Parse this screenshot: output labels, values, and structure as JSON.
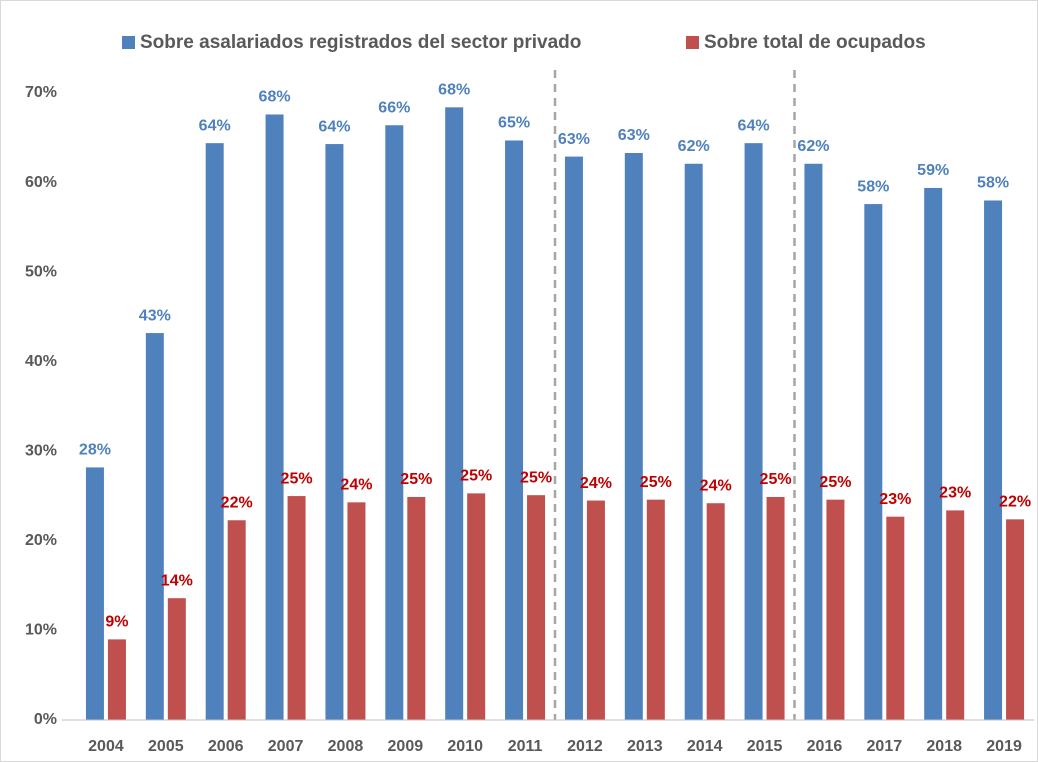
{
  "chart_data": {
    "type": "bar",
    "legend": "top",
    "categories": [
      "2004",
      "2005",
      "2006",
      "2007",
      "2008",
      "2009",
      "2010",
      "2011",
      "2012",
      "2013",
      "2014",
      "2015",
      "2016",
      "2017",
      "2018",
      "2019"
    ],
    "series": [
      {
        "name": "Sobre asalariados registrados del sector privado",
        "color": "#4f81bd",
        "label_color": "#4f81bd",
        "values": [
          28.2,
          43.2,
          64.4,
          67.6,
          64.3,
          66.4,
          68.4,
          64.7,
          62.9,
          63.3,
          62.1,
          64.4,
          62.1,
          57.6,
          59.4,
          58.0
        ],
        "value_labels": [
          "28%",
          "43%",
          "64%",
          "68%",
          "64%",
          "66%",
          "68%",
          "65%",
          "63%",
          "63%",
          "62%",
          "64%",
          "62%",
          "58%",
          "59%",
          "58%"
        ]
      },
      {
        "name": "Sobre total de ocupados",
        "color": "#c0504d",
        "label_color": "#c00000",
        "values": [
          9.0,
          13.6,
          22.3,
          25.0,
          24.3,
          24.9,
          25.3,
          25.1,
          24.5,
          24.6,
          24.2,
          24.9,
          24.6,
          22.7,
          23.4,
          22.4
        ],
        "value_labels": [
          "9%",
          "14%",
          "22%",
          "25%",
          "24%",
          "25%",
          "25%",
          "25%",
          "24%",
          "25%",
          "24%",
          "25%",
          "25%",
          "23%",
          "23%",
          "22%"
        ]
      }
    ],
    "ylim": [
      0,
      70
    ],
    "yticks": [
      {
        "value": 0,
        "label": "0%"
      },
      {
        "value": 10,
        "label": "10%"
      },
      {
        "value": 20,
        "label": "20%"
      },
      {
        "value": 30,
        "label": "30%"
      },
      {
        "value": 40,
        "label": "40%"
      },
      {
        "value": 50,
        "label": "50%"
      },
      {
        "value": 60,
        "label": "60%"
      },
      {
        "value": 70,
        "label": "70%"
      }
    ],
    "grid": false
  }
}
